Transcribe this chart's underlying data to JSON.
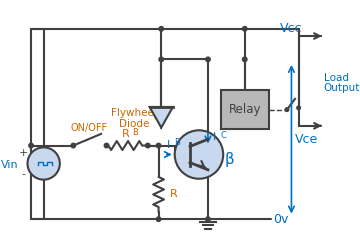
{
  "bg_color": "#ffffff",
  "wire_color": "#404040",
  "transistor_fill": "#c8d8ee",
  "relay_fill": "#b8b8b8",
  "diode_fill": "#c8d8ee",
  "source_fill": "#c8d8ee",
  "label_blue": "#0070c0",
  "label_orange": "#cc6600",
  "vcc_label": "Vcc",
  "vce_label": "Vce",
  "zero_v_label": "0v",
  "vin_label": "Vin",
  "rb_label": "R",
  "rb_sub": "B",
  "ib_label": "I",
  "ib_sub": "B",
  "ic_label": "I",
  "ic_sub": "C",
  "beta_label": "β",
  "r_label": "R",
  "relay_label": "Relay",
  "flywheel_line1": "Flywheel",
  "flywheel_line2": "Diode",
  "onoff_label": "ON/OFF",
  "load_line1": "Load",
  "load_line2": "Output"
}
